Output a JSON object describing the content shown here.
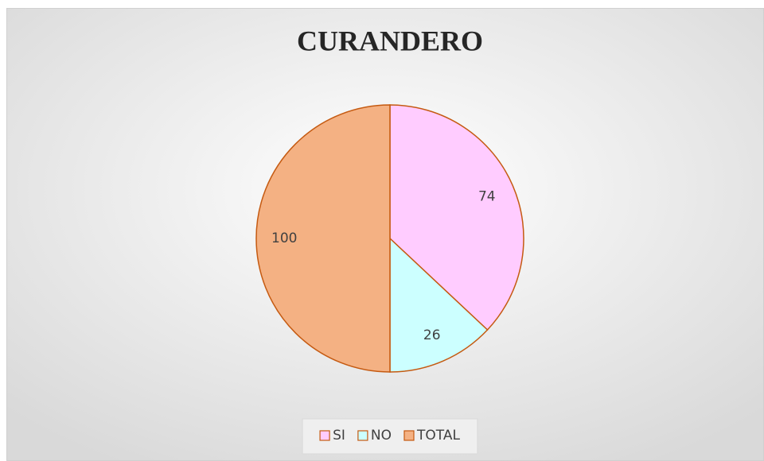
{
  "chart_data": {
    "type": "pie",
    "title": "CURANDERO",
    "categories": [
      "SI",
      "NO",
      "TOTAL"
    ],
    "values": [
      74,
      26,
      100
    ],
    "colors": [
      "#ffccff",
      "#ccffff",
      "#f4b183"
    ],
    "stroke": "#c55a11",
    "legend": "bottom"
  }
}
